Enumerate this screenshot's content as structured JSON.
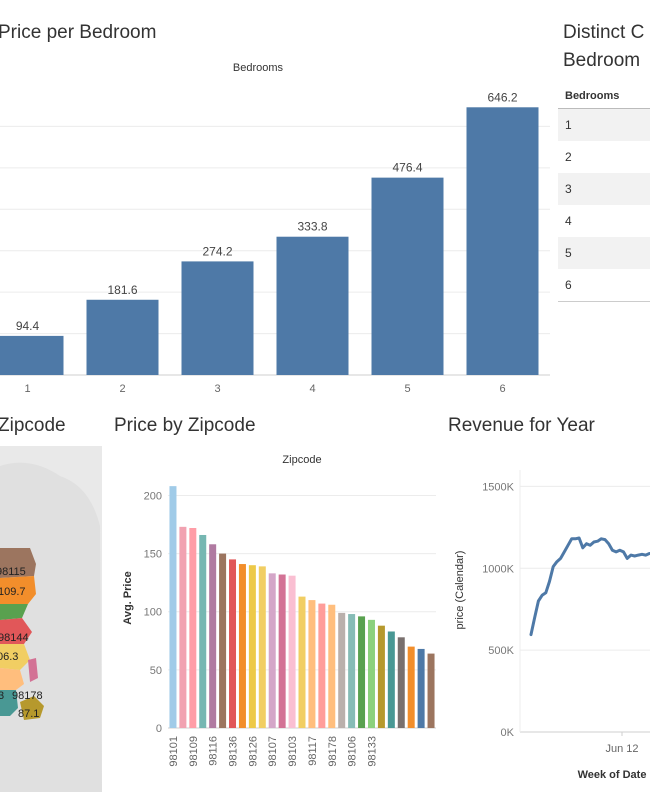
{
  "titles": {
    "bedroom_chart": "Price per Bedroom",
    "distinct_table": "Distinct C",
    "distinct_table_line2": "Bedroom",
    "zip_map": "Zipcode",
    "zip_chart": "Price by Zipcode",
    "revenue_chart": "Revenue for Year"
  },
  "table": {
    "header": "Bedrooms",
    "rows": [
      "1",
      "2",
      "3",
      "4",
      "5",
      "6"
    ]
  },
  "map_labels": [
    "98115",
    "109.7",
    "98144",
    "06.3",
    "98178",
    "87.1",
    "3"
  ],
  "chart_data": [
    {
      "type": "bar",
      "title": "Price per Bedroom",
      "xlabel": "Bedrooms",
      "categories": [
        "1",
        "2",
        "3",
        "4",
        "5",
        "6"
      ],
      "values": [
        94.4,
        181.6,
        274.2,
        333.8,
        476.4,
        646.2
      ],
      "labels": [
        "94.4",
        "181.6",
        "274.2",
        "333.8",
        "476.4",
        "646.2"
      ],
      "color": "#4e79a7",
      "ylim": [
        0,
        700
      ],
      "grid": true
    },
    {
      "type": "bar",
      "title": "Price by Zipcode",
      "xlabel": "Zipcode",
      "ylabel": "Avg. Price",
      "yticks": [
        0,
        50,
        100,
        150,
        200
      ],
      "ylim": [
        0,
        215
      ],
      "tick_labels": [
        "98101",
        "98109",
        "98116",
        "98136",
        "98126",
        "98107",
        "98103",
        "98117",
        "98178",
        "98106",
        "98133"
      ],
      "values": [
        208,
        173,
        172,
        166,
        158,
        150,
        145,
        141,
        140,
        139,
        133,
        132,
        131,
        113,
        110,
        107,
        106,
        99,
        98,
        96,
        93,
        88,
        83,
        78,
        70,
        68,
        64
      ],
      "colors": [
        "#a0cbe8",
        "#f1a2b1",
        "#ff9da7",
        "#76b7b2",
        "#b07aa1",
        "#9c755f",
        "#e15759",
        "#f28e2b",
        "#edc948",
        "#f1ce63",
        "#d4a6c8",
        "#d37295",
        "#fabfd2",
        "#f1ce63",
        "#ffbe7d",
        "#ff9d9a",
        "#ffbe7d",
        "#bab0ac",
        "#86bcb6",
        "#59a14f",
        "#8cd17d",
        "#b6992d",
        "#499894",
        "#79706e",
        "#f28e2b",
        "#4e79a7",
        "#9c755f"
      ],
      "grid": true
    },
    {
      "type": "line",
      "title": "Revenue for Year",
      "xlabel": "Week of Date",
      "ylabel": "price (Calendar)",
      "yticks": [
        0,
        500000,
        1000000,
        1500000
      ],
      "ytick_labels": [
        "0K",
        "500K",
        "1000K",
        "1500K"
      ],
      "xtick_labels": [
        "Jun 12"
      ],
      "ylim": [
        0,
        1600000
      ],
      "x": [
        0,
        1,
        2,
        3,
        4,
        5,
        6,
        7,
        8,
        9,
        10,
        11,
        12,
        13,
        14,
        15,
        16,
        17,
        18,
        19,
        20,
        21,
        22,
        23,
        24,
        25,
        26,
        27,
        28,
        29,
        30,
        31,
        32
      ],
      "values": [
        595000,
        700000,
        800000,
        835000,
        850000,
        920000,
        1010000,
        1040000,
        1060000,
        1100000,
        1140000,
        1180000,
        1180000,
        1185000,
        1125000,
        1150000,
        1140000,
        1160000,
        1165000,
        1180000,
        1175000,
        1150000,
        1110000,
        1100000,
        1110000,
        1100000,
        1060000,
        1080000,
        1075000,
        1080000,
        1085000,
        1080000,
        1090000
      ],
      "color": "#4e79a7"
    }
  ]
}
